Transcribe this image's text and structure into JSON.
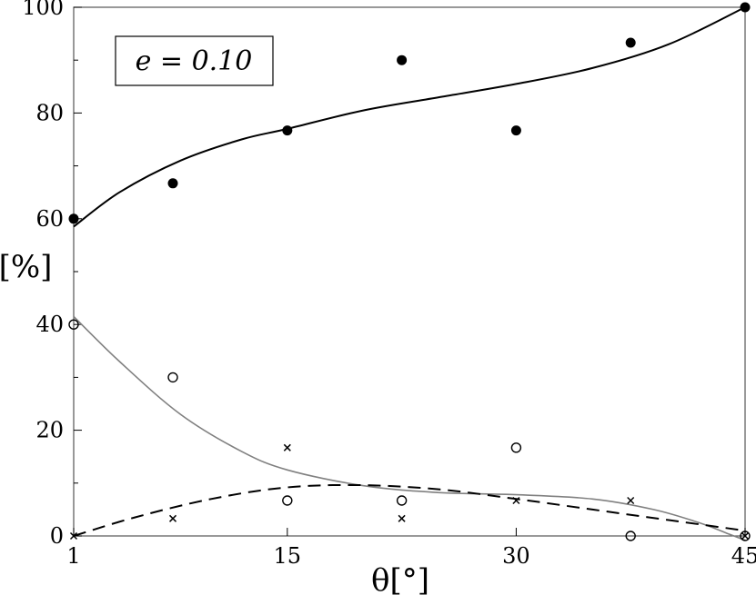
{
  "chart_data": {
    "type": "scatter",
    "title": "",
    "xlabel": "θ[°]",
    "ylabel": "[%]",
    "xlim": [
      1,
      45
    ],
    "ylim": [
      0,
      100
    ],
    "x_ticks": [
      1,
      15,
      30,
      45
    ],
    "y_ticks": [
      0,
      20,
      40,
      60,
      80,
      100
    ],
    "y_minor_step": 10,
    "grid": false,
    "annotation": "e = 0.10",
    "annotation_placement": "top-left",
    "series": [
      {
        "marker": "filled-circle",
        "x": [
          1,
          7.5,
          15,
          22.5,
          30,
          37.5,
          45
        ],
        "y": [
          60,
          66.7,
          76.7,
          90,
          76.7,
          93.3,
          100
        ],
        "color": "#000000"
      },
      {
        "marker": "open-circle",
        "x": [
          1,
          7.5,
          15,
          22.5,
          30,
          37.5,
          45
        ],
        "y": [
          40,
          30,
          6.7,
          6.7,
          16.7,
          0,
          0
        ],
        "color": "#000000"
      },
      {
        "marker": "cross",
        "x": [
          1,
          7.5,
          15,
          22.5,
          30,
          37.5,
          45
        ],
        "y": [
          0,
          3.3,
          16.7,
          3.3,
          6.7,
          6.7,
          0
        ],
        "color": "#000000"
      }
    ],
    "fit_curves": [
      {
        "style": "solid",
        "color": "#000000",
        "x": [
          1,
          4,
          8,
          12,
          15,
          20,
          25,
          30,
          35,
          40,
          45
        ],
        "y": [
          58.5,
          65,
          71,
          75,
          77,
          80.5,
          83,
          85.5,
          88.5,
          93,
          100
        ]
      },
      {
        "style": "solid",
        "color": "#808080",
        "x": [
          1,
          4,
          8,
          12,
          15,
          20,
          25,
          30,
          35,
          39,
          42,
          44,
          45
        ],
        "y": [
          41.5,
          33,
          23,
          16,
          12.5,
          9.5,
          8.2,
          7.8,
          7,
          5,
          2.5,
          0.3,
          -0.8
        ]
      },
      {
        "style": "dashed",
        "color": "#000000",
        "x": [
          1,
          5,
          10,
          15,
          20,
          25,
          30,
          35,
          40,
          45
        ],
        "y": [
          0,
          3.5,
          7,
          9.2,
          9.6,
          8.8,
          7,
          5,
          3,
          1
        ]
      }
    ]
  }
}
